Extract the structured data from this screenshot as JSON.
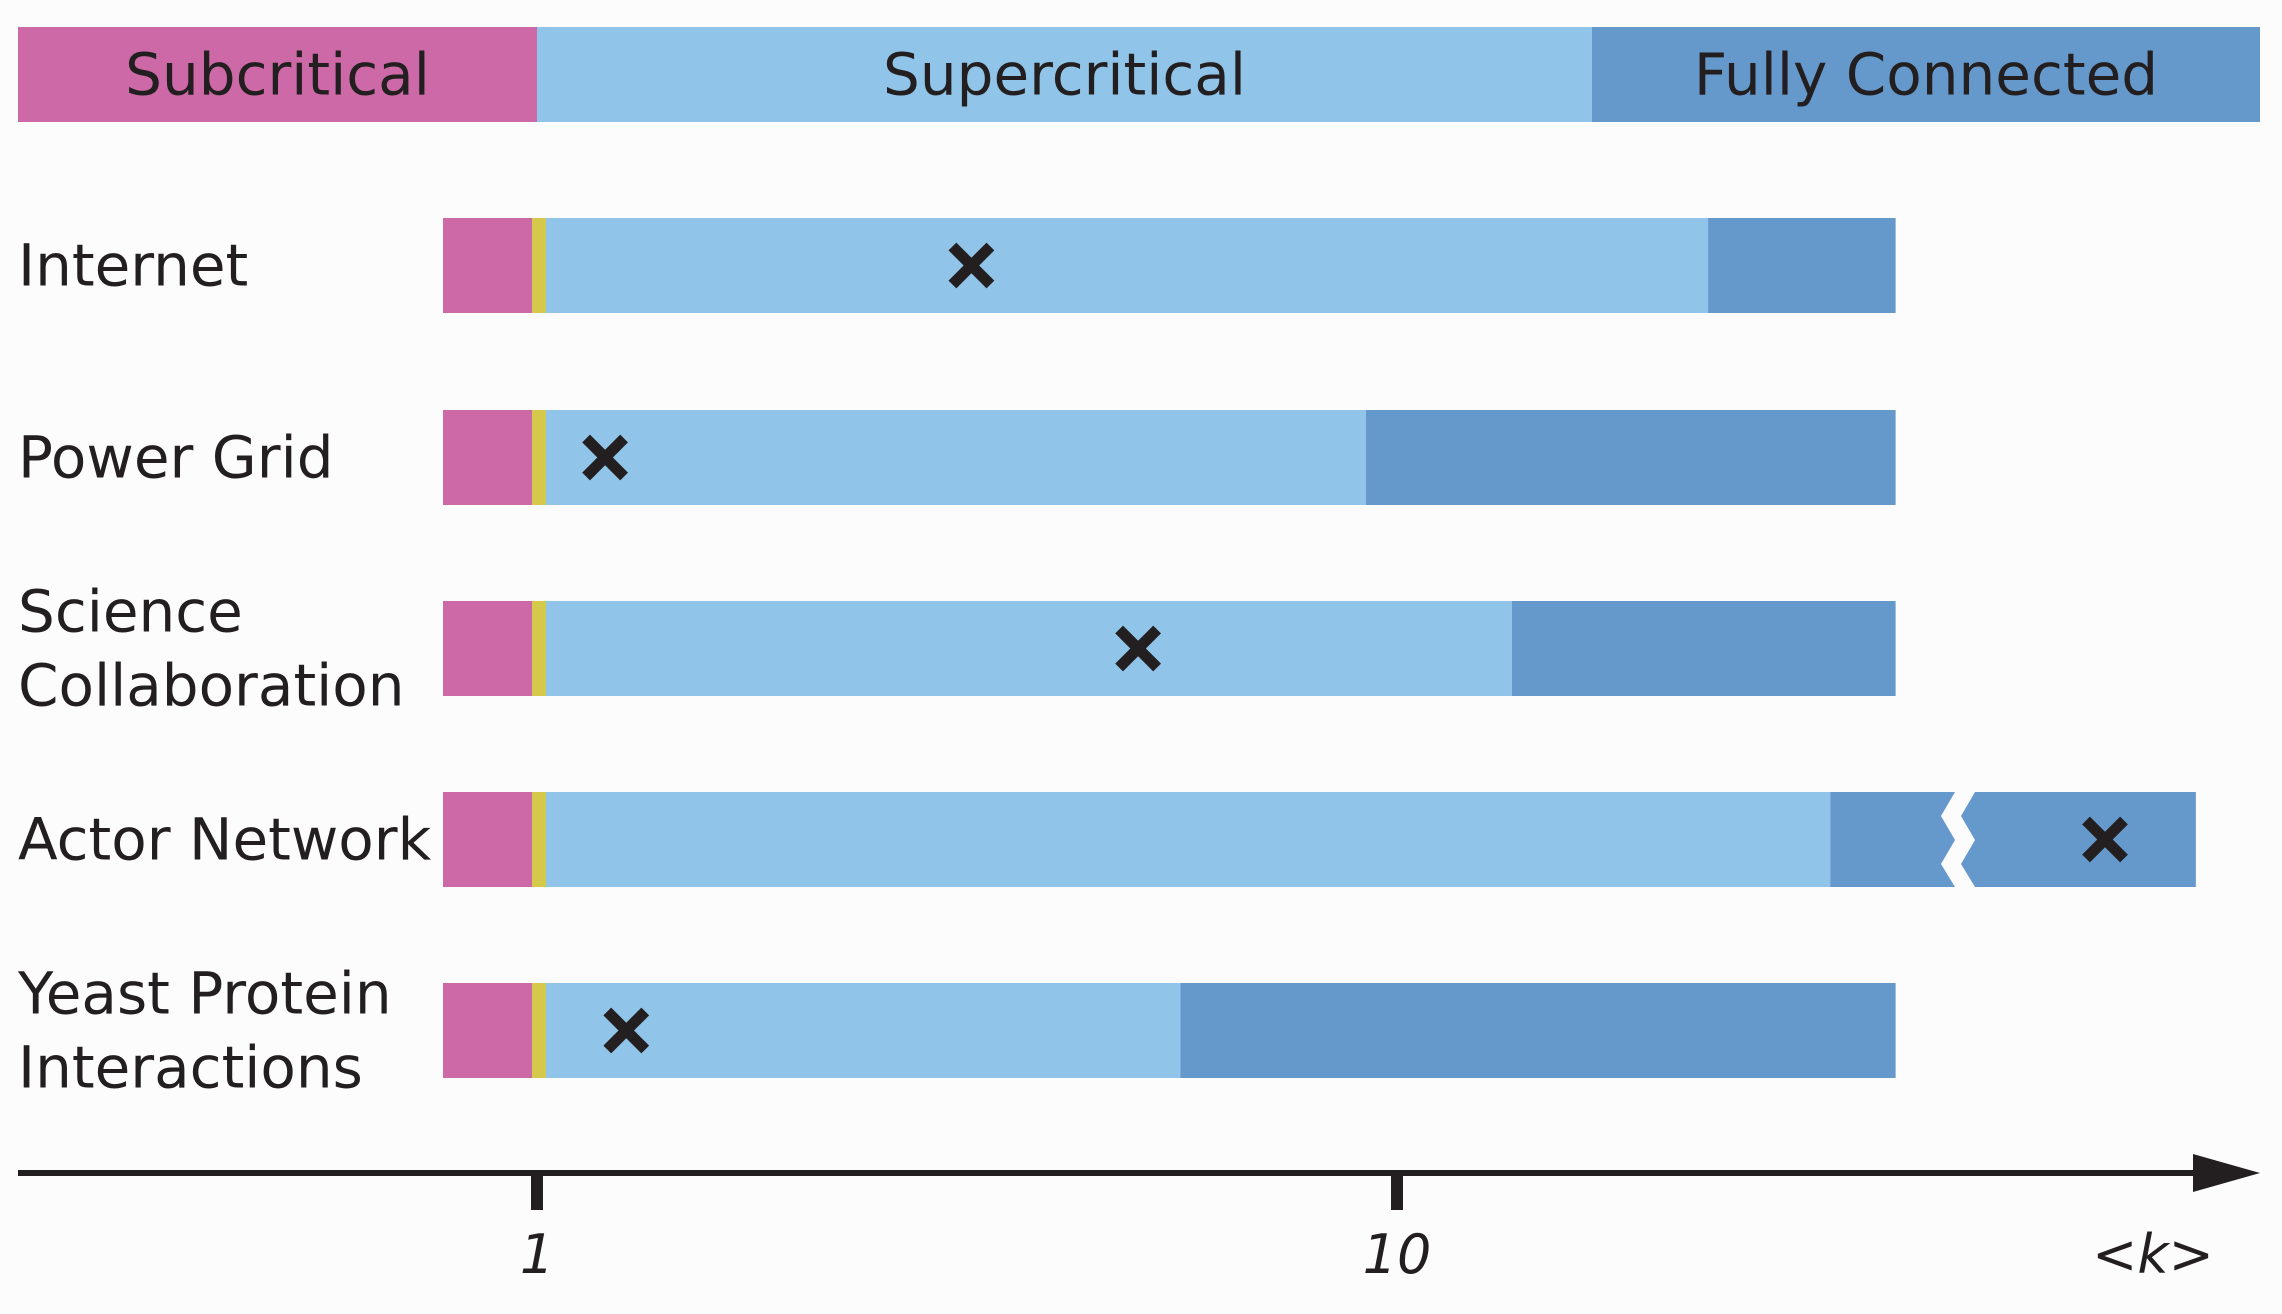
{
  "chart_data": {
    "type": "bar",
    "orientation": "horizontal",
    "x_scale": "log",
    "xlabel": "<k>",
    "x_ticks": [
      {
        "value": 1,
        "label": "1"
      },
      {
        "value": 10,
        "label": "10"
      }
    ],
    "regimes": [
      {
        "name": "Subcritical",
        "color": "#cd69a7"
      },
      {
        "name": "Supercritical",
        "color": "#90c4e8"
      },
      {
        "name": "Fully Connected",
        "color": "#6599cc"
      }
    ],
    "critical_band_color": "#d4c94a",
    "marker_color": "#231f20",
    "rows": [
      {
        "label_lines": [
          "Internet"
        ],
        "k_marker": 3.2,
        "connected_from": 23,
        "end": 38,
        "broken_axis": false
      },
      {
        "label_lines": [
          "Power Grid"
        ],
        "k_marker": 1.2,
        "connected_from": 9.2,
        "end": 38,
        "broken_axis": false
      },
      {
        "label_lines": [
          "Science",
          "Collaboration"
        ],
        "k_marker": 5.0,
        "connected_from": 13.6,
        "end": 38,
        "broken_axis": false
      },
      {
        "label_lines": [
          "Actor Network"
        ],
        "k_marker": 83.6,
        "connected_from": 31.9,
        "end": 84.9,
        "broken_axis": true
      },
      {
        "label_lines": [
          "Yeast Protein",
          "Interactions"
        ],
        "k_marker": 1.27,
        "connected_from": 5.6,
        "end": 38,
        "broken_axis": false
      }
    ]
  }
}
